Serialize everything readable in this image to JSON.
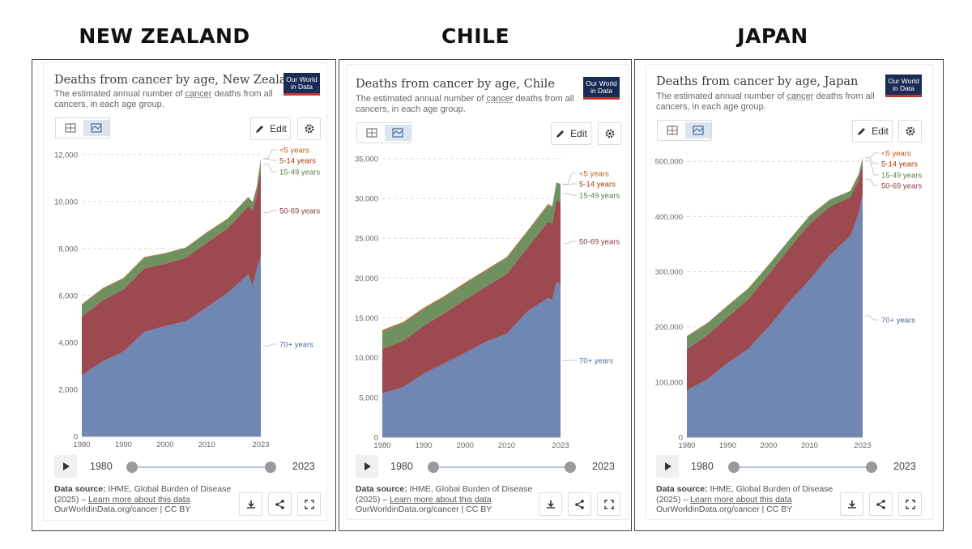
{
  "panels": [
    {
      "heading": "NEW ZEALAND",
      "title": "Deaths from cancer by age, New Zealand",
      "subtitle_pre": "The estimated annual number of ",
      "subtitle_link": "cancer",
      "subtitle_post": " deaths from all cancers, in each age group.",
      "logo_text": "Our World in Data",
      "edit_label": "Edit",
      "start_year": "1980",
      "end_year": "2023",
      "source_label": "Data source:",
      "source_text": "IHME, Global Burden of Disease (2025) –",
      "source_link": "Learn more about this data",
      "footer_url": "OurWorldinData.org/cancer | CC BY"
    },
    {
      "heading": "CHILE",
      "title": "Deaths from cancer by age, Chile",
      "subtitle_pre": "The estimated annual number of ",
      "subtitle_link": "cancer",
      "subtitle_post": " deaths from all cancers, in each age group.",
      "logo_text": "Our World in Data",
      "edit_label": "Edit",
      "start_year": "1980",
      "end_year": "2023",
      "source_label": "Data source:",
      "source_text": "IHME, Global Burden of Disease (2025) –",
      "source_link": "Learn more about this data",
      "footer_url": "OurWorldinData.org/cancer | CC BY"
    },
    {
      "heading": "JAPAN",
      "title": "Deaths from cancer by age, Japan",
      "subtitle_pre": "The estimated annual number of ",
      "subtitle_link": "cancer",
      "subtitle_post": " deaths from all cancers, in each age group.",
      "logo_text": "Our World in Data",
      "edit_label": "Edit",
      "start_year": "1980",
      "end_year": "2023",
      "source_label": "Data source:",
      "source_text": "IHME, Global Burden of Disease (2025) –",
      "source_link": "Learn more about this data",
      "footer_url": "OurWorldinData.org/cancer | CC BY"
    }
  ],
  "series_colors": {
    "70+ years": "#6f87b2",
    "50-69 years": "#9c4a50",
    "15-49 years": "#6f9160",
    "5-14 years": "#b5523b",
    "<5 years": "#c28a3a"
  },
  "label_colors": {
    "70+ years": "#4c6a9c",
    "50-69 years": "#883941",
    "15-49 years": "#578145",
    "5-14 years": "#b13507",
    "<5 years": "#be5915"
  },
  "chart_data": [
    {
      "type": "area",
      "stacked": true,
      "title": "Deaths from cancer by age, New Zealand",
      "x": [
        1980,
        1985,
        1990,
        1995,
        2000,
        2005,
        2010,
        2015,
        2020,
        2021,
        2022,
        2023
      ],
      "x_ticks": [
        1980,
        1990,
        2000,
        2010,
        2023
      ],
      "y_ticks": [
        0,
        2000,
        4000,
        6000,
        8000,
        10000,
        12000
      ],
      "y_tick_labels": [
        "0",
        "2,000",
        "4,000",
        "6,000",
        "8,000",
        "10,000",
        "12,000"
      ],
      "ylim": [
        0,
        12200
      ],
      "series": [
        {
          "name": "70+ years",
          "values": [
            2600,
            3200,
            3600,
            4450,
            4700,
            4900,
            5500,
            6100,
            6900,
            6400,
            7100,
            7700
          ]
        },
        {
          "name": "50-69 years",
          "values": [
            2500,
            2600,
            2650,
            2700,
            2650,
            2700,
            2750,
            2750,
            2900,
            3200,
            3150,
            3650
          ]
        },
        {
          "name": "15-49 years",
          "values": [
            500,
            480,
            470,
            460,
            430,
            420,
            420,
            400,
            380,
            360,
            340,
            450
          ]
        },
        {
          "name": "5-14 years",
          "values": [
            20,
            20,
            18,
            18,
            16,
            15,
            15,
            14,
            13,
            13,
            12,
            20
          ]
        },
        {
          "name": "<5 years",
          "values": [
            15,
            14,
            13,
            12,
            11,
            11,
            10,
            10,
            9,
            9,
            9,
            15
          ]
        }
      ],
      "legend_labels": [
        "<5 years",
        "5-14 years",
        "15-49 years",
        "50-69 years",
        "70+ years"
      ]
    },
    {
      "type": "area",
      "stacked": true,
      "title": "Deaths from cancer by age, Chile",
      "x": [
        1980,
        1985,
        1990,
        1995,
        2000,
        2005,
        2010,
        2015,
        2020,
        2021,
        2022,
        2023
      ],
      "x_ticks": [
        1980,
        1990,
        2000,
        2010,
        2023
      ],
      "y_ticks": [
        0,
        5000,
        10000,
        15000,
        20000,
        25000,
        30000,
        35000
      ],
      "y_tick_labels": [
        "0",
        "5,000",
        "10,000",
        "15,000",
        "20,000",
        "25,000",
        "30,000",
        "35,000"
      ],
      "ylim": [
        0,
        35500
      ],
      "series": [
        {
          "name": "70+ years",
          "values": [
            5500,
            6300,
            8000,
            9300,
            10600,
            12000,
            13000,
            15800,
            17500,
            17300,
            19500,
            19200
          ]
        },
        {
          "name": "50-69 years",
          "values": [
            5600,
            5800,
            6000,
            6300,
            6700,
            6900,
            7500,
            8000,
            9600,
            9500,
            10300,
            10300
          ]
        },
        {
          "name": "15-49 years",
          "values": [
            2200,
            2200,
            2100,
            2000,
            2000,
            2000,
            2000,
            2000,
            2100,
            2100,
            2100,
            2200
          ]
        },
        {
          "name": "5-14 years",
          "values": [
            100,
            100,
            95,
            90,
            90,
            85,
            80,
            80,
            75,
            75,
            75,
            75
          ]
        },
        {
          "name": "<5 years",
          "values": [
            90,
            85,
            80,
            75,
            70,
            65,
            60,
            55,
            50,
            50,
            50,
            50
          ]
        }
      ],
      "legend_labels": [
        "<5 years",
        "5-14 years",
        "15-49 years",
        "50-69 years",
        "70+ years"
      ]
    },
    {
      "type": "area",
      "stacked": true,
      "title": "Deaths from cancer by age, Japan",
      "x": [
        1980,
        1985,
        1990,
        1995,
        2000,
        2005,
        2010,
        2015,
        2020,
        2021,
        2022,
        2023
      ],
      "x_ticks": [
        1980,
        1990,
        2000,
        2010,
        2023
      ],
      "y_ticks": [
        0,
        100000,
        200000,
        300000,
        400000,
        500000
      ],
      "y_tick_labels": [
        "0",
        "100,000",
        "200,000",
        "300,000",
        "400,000",
        "500,000"
      ],
      "ylim": [
        0,
        515000
      ],
      "series": [
        {
          "name": "70+ years",
          "values": [
            85000,
            105000,
            135000,
            160000,
            200000,
            245000,
            285000,
            330000,
            365000,
            385000,
            405000,
            440000
          ]
        },
        {
          "name": "50-69 years",
          "values": [
            75000,
            80000,
            83000,
            90000,
            95000,
            97000,
            102000,
            88000,
            70000,
            65000,
            60000,
            55000
          ]
        },
        {
          "name": "15-49 years",
          "values": [
            22000,
            21000,
            20000,
            19000,
            17000,
            15000,
            14000,
            12500,
            11000,
            11000,
            11000,
            11000
          ]
        },
        {
          "name": "5-14 years",
          "values": [
            800,
            700,
            600,
            500,
            450,
            400,
            350,
            320,
            300,
            300,
            300,
            300
          ]
        },
        {
          "name": "<5 years",
          "values": [
            700,
            600,
            500,
            400,
            350,
            300,
            280,
            260,
            240,
            240,
            240,
            240
          ]
        }
      ],
      "legend_labels": [
        "<5 years",
        "5-14 years",
        "15-49 years",
        "50-69 years",
        "70+ years"
      ]
    }
  ]
}
